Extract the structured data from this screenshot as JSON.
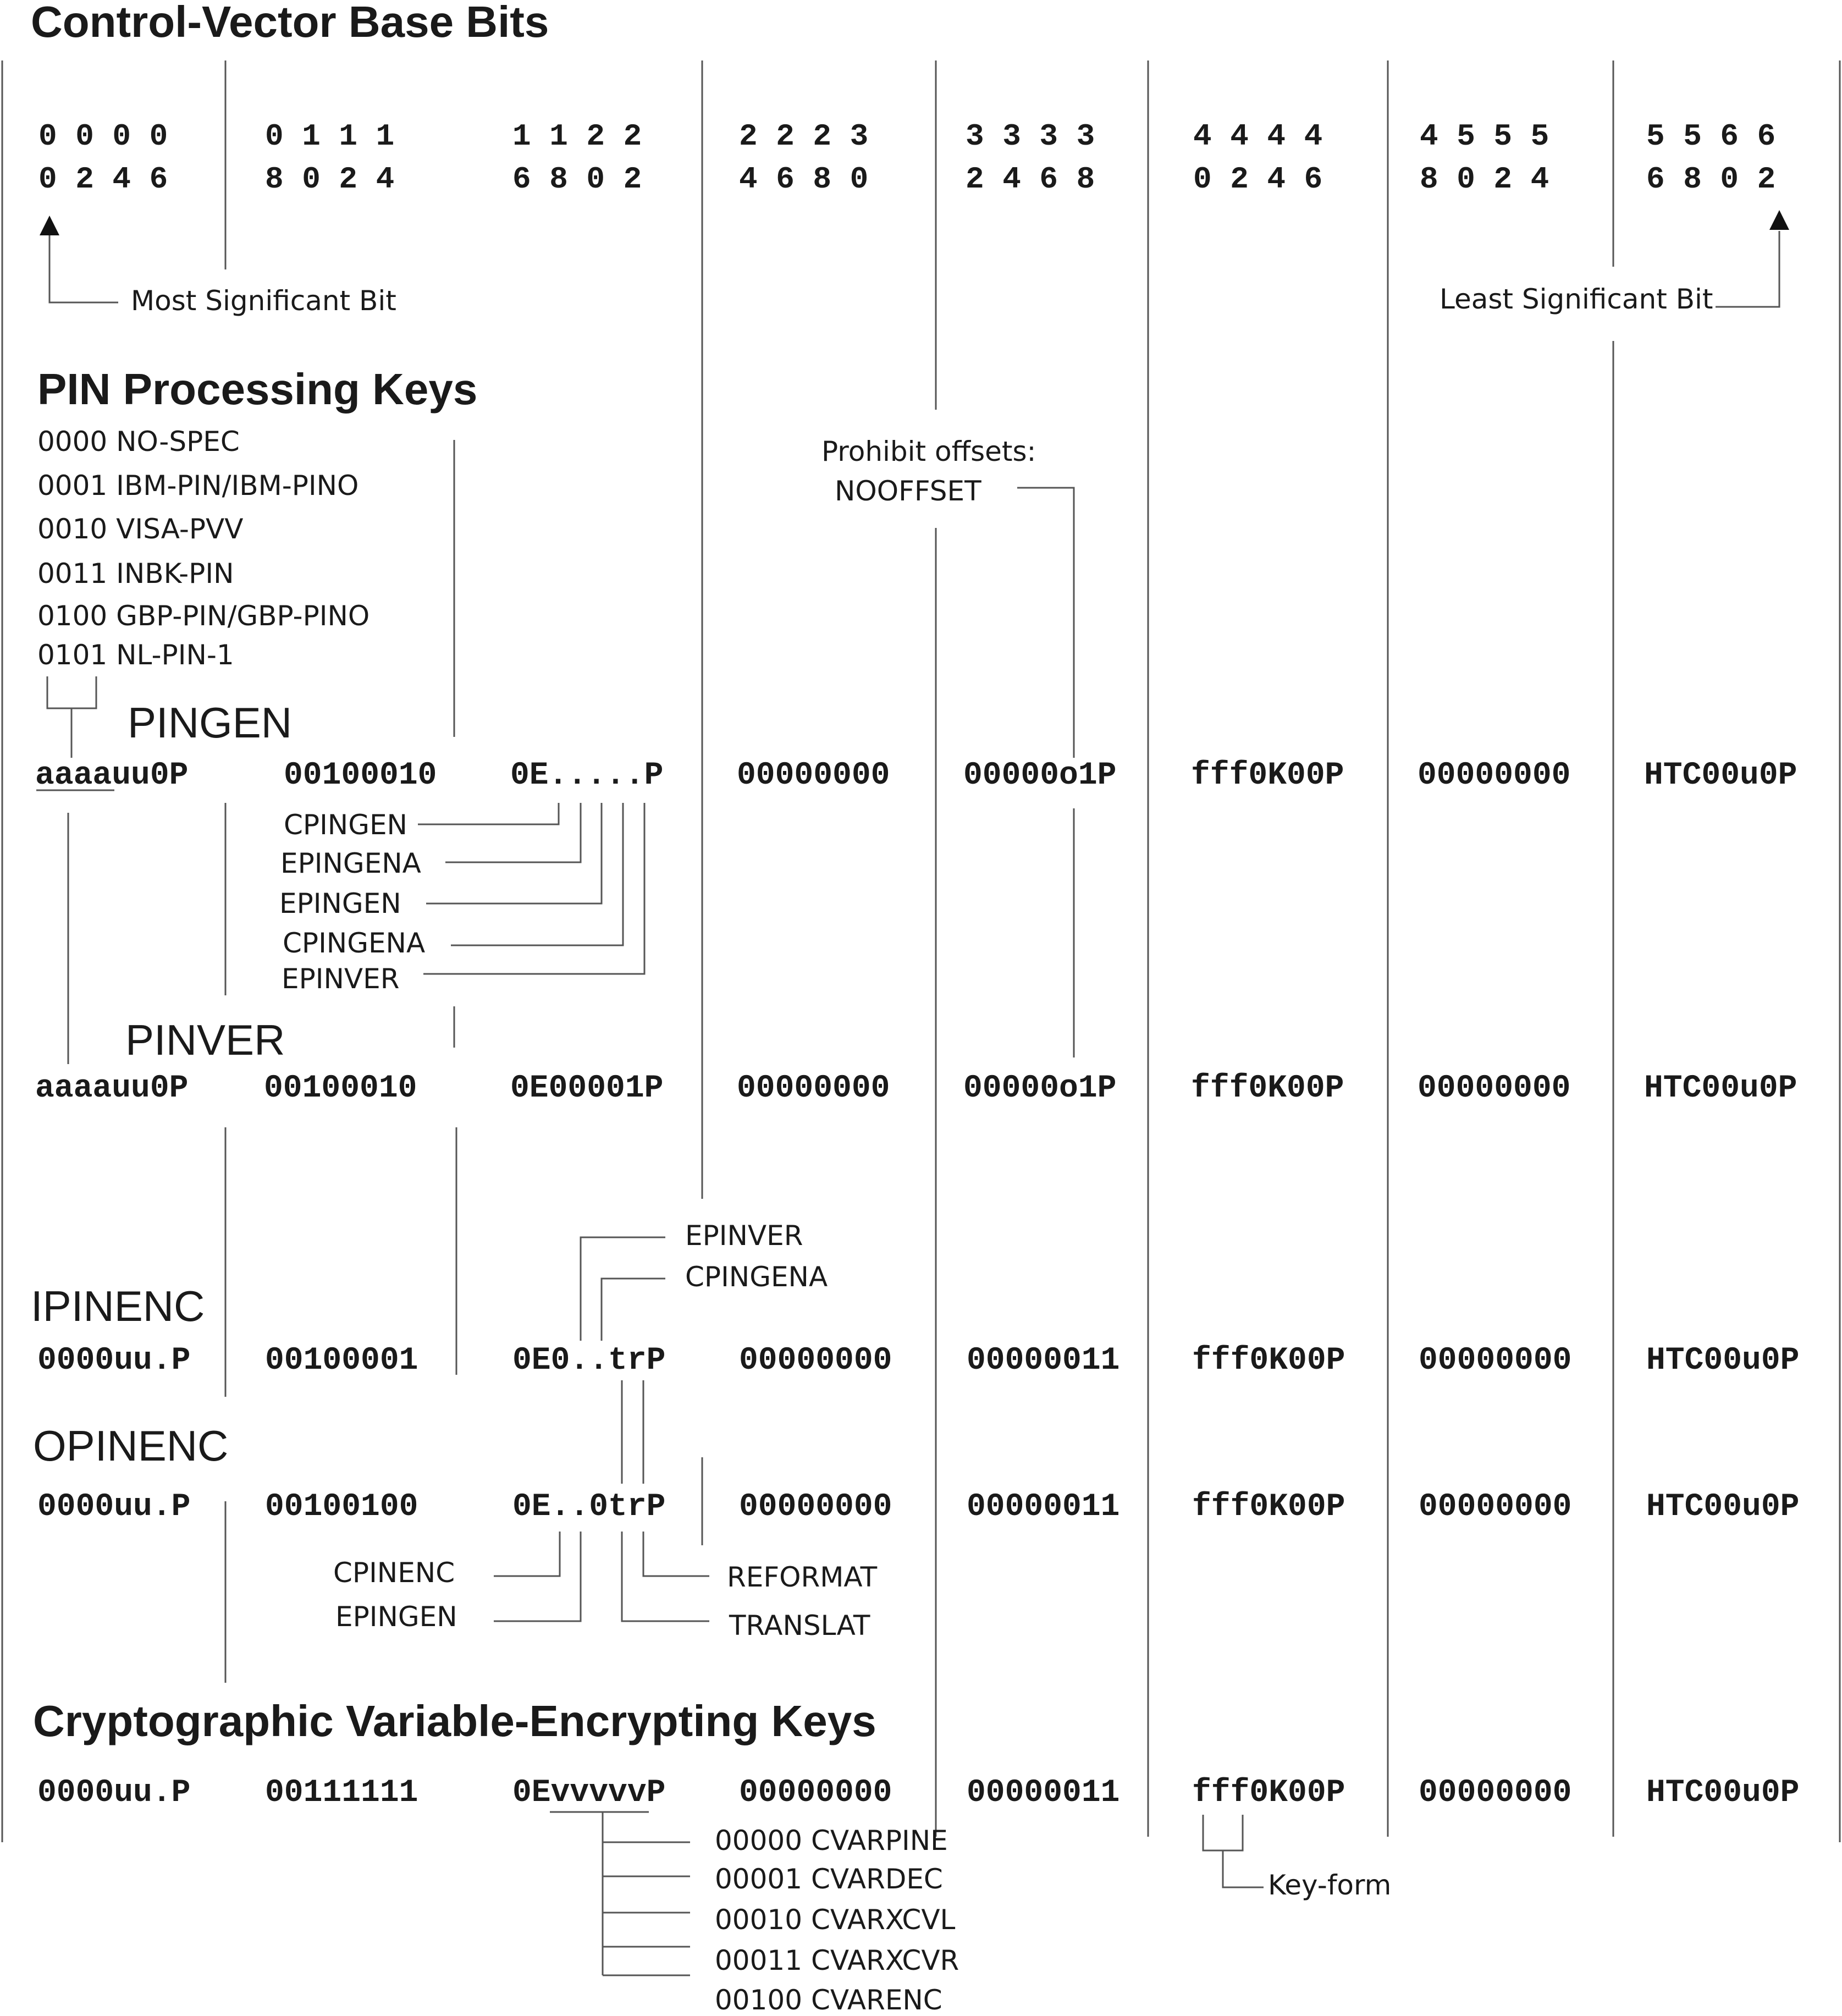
{
  "title": "Control-Vector Base Bits",
  "bit_header": {
    "top": [
      "0 0 0 0",
      "0 1 1 1",
      "1 1 2 2",
      "2 2 2 3",
      "3 3 3 3",
      "4 4 4 4",
      "4 5 5 5",
      "5 5 6 6"
    ],
    "bottom": [
      "0 2 4 6",
      "8 0 2 4",
      "6 8 0 2",
      "4 6 8 0",
      "2 4 6 8",
      "0 2 4 6",
      "8 0 2 4",
      "6 8 0 2"
    ],
    "msb_label": "Most Significant Bit",
    "lsb_label": "Least Significant Bit"
  },
  "pin_processing": {
    "heading": "PIN Processing Keys",
    "algorithms": [
      "0000 NO-SPEC",
      "0001 IBM-PIN/IBM-PINO",
      "0010 VISA-PVV",
      "0011 INBK-PIN",
      "0100 GBP-PIN/GBP-PINO",
      "0101 NL-PIN-1"
    ],
    "prohibit_label": "Prohibit offsets:",
    "prohibit_value": "NOOFFSET"
  },
  "pingen": {
    "label": "PINGEN",
    "fields": [
      "aaaauu0P",
      "00100010",
      "0E.....P",
      "00000000",
      "00000o1P",
      "fff0K00P",
      "00000000",
      "HTC00u0P"
    ],
    "subtypes": [
      "CPINGEN",
      "EPINGENA",
      "EPINGEN",
      "CPINGENA",
      "EPINVER"
    ]
  },
  "pinver": {
    "label": "PINVER",
    "fields": [
      "aaaauu0P",
      "00100010",
      "0E00001P",
      "00000000",
      "00000o1P",
      "fff0K00P",
      "00000000",
      "HTC00u0P"
    ]
  },
  "ipinenc": {
    "label": "IPINENC",
    "fields": [
      "0000uu.P",
      "00100001",
      "0E0..trP",
      "00000000",
      "00000011",
      "fff0K00P",
      "00000000",
      "HTC00u0P"
    ],
    "subtypes": [
      "EPINVER",
      "CPINGENA"
    ]
  },
  "opinenc": {
    "label": "OPINENC",
    "fields": [
      "0000uu.P",
      "00100100",
      "0E..0trP",
      "00000000",
      "00000011",
      "fff0K00P",
      "00000000",
      "HTC00u0P"
    ],
    "subtypes_left": [
      "CPINENC",
      "EPINGEN"
    ],
    "subtypes_right": [
      "REFORMAT",
      "TRANSLAT"
    ]
  },
  "cvek": {
    "heading": "Cryptographic Variable-Encrypting Keys",
    "fields": [
      "0000uu.P",
      "00111111",
      "0EvvvvvP",
      "00000000",
      "00000011",
      "fff0K00P",
      "00000000",
      "HTC00u0P"
    ],
    "subtypes": [
      "00000 CVARPINE",
      "00001 CVARDEC",
      "00010 CVARXCVL",
      "00011 CVARXCVR",
      "00100 CVARENC"
    ],
    "keyform_label": "Key-form"
  }
}
